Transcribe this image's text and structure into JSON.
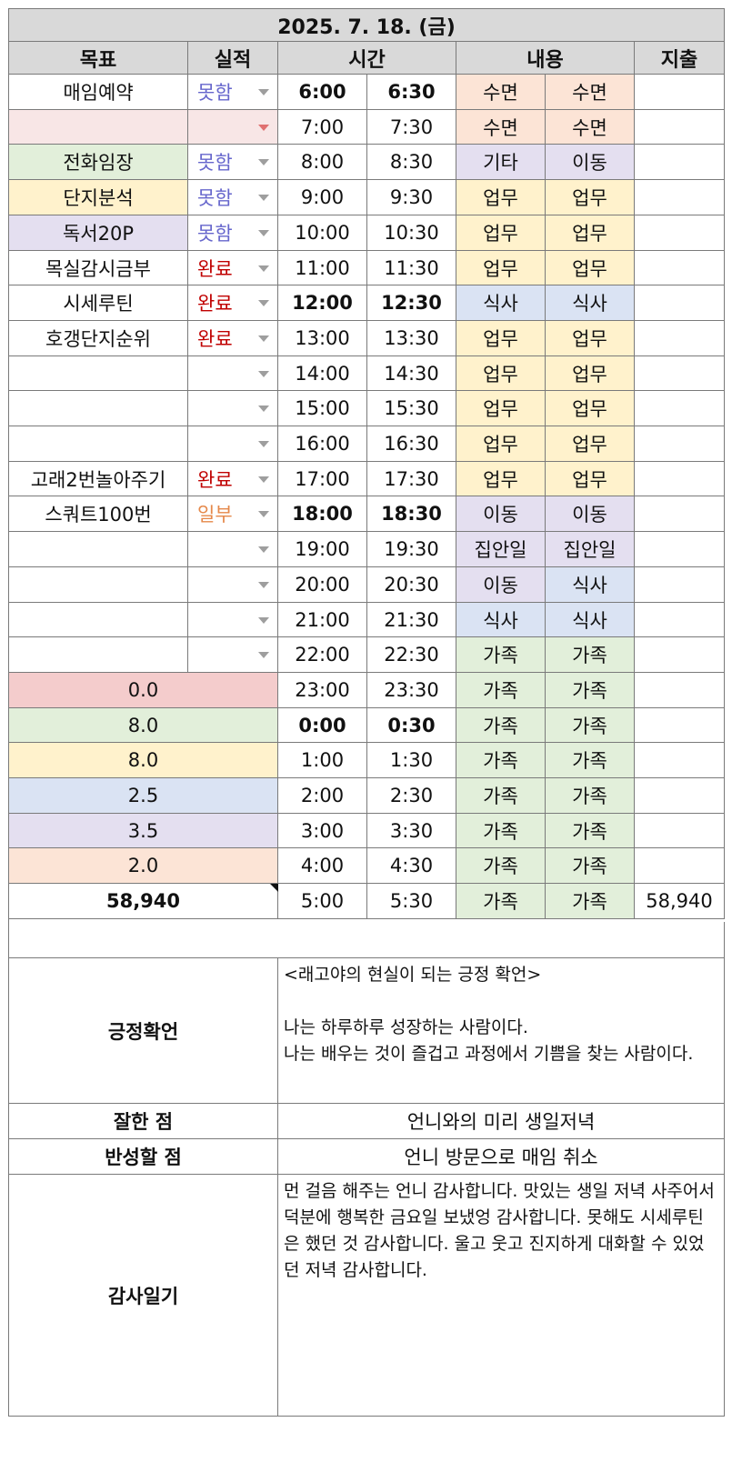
{
  "date_title": "2025. 7. 18. (금)",
  "headers": {
    "goal": "목표",
    "achievement": "실적",
    "time": "시간",
    "content": "내용",
    "expense": "지출"
  },
  "colors": {
    "sleep": "#fce4d6",
    "other": "#e4dff0",
    "work": "#fff2cc",
    "meal": "#dae3f3",
    "family": "#e2efda",
    "pink": "#f8e6e6",
    "status_not_done": "#6666cc",
    "status_done": "#c00000",
    "status_partial": "#e5884a"
  },
  "rows": [
    {
      "goal": "매임예약",
      "status": "못함",
      "time1": "6:00",
      "time2": "6:30",
      "c1": "수면",
      "c2": "수면"
    },
    {
      "goal": "",
      "status": "",
      "time1": "7:00",
      "time2": "7:30",
      "c1": "수면",
      "c2": "수면"
    },
    {
      "goal": "전화임장",
      "status": "못함",
      "time1": "8:00",
      "time2": "8:30",
      "c1": "기타",
      "c2": "이동"
    },
    {
      "goal": "단지분석",
      "status": "못함",
      "time1": "9:00",
      "time2": "9:30",
      "c1": "업무",
      "c2": "업무"
    },
    {
      "goal": "독서20P",
      "status": "못함",
      "time1": "10:00",
      "time2": "10:30",
      "c1": "업무",
      "c2": "업무"
    },
    {
      "goal": "목실감시금부",
      "status": "완료",
      "time1": "11:00",
      "time2": "11:30",
      "c1": "업무",
      "c2": "업무"
    },
    {
      "goal": "시세루틴",
      "status": "완료",
      "time1": "12:00",
      "time2": "12:30",
      "c1": "식사",
      "c2": "식사"
    },
    {
      "goal": "호갱단지순위",
      "status": "완료",
      "time1": "13:00",
      "time2": "13:30",
      "c1": "업무",
      "c2": "업무"
    },
    {
      "goal": "",
      "status": "",
      "time1": "14:00",
      "time2": "14:30",
      "c1": "업무",
      "c2": "업무"
    },
    {
      "goal": "",
      "status": "",
      "time1": "15:00",
      "time2": "15:30",
      "c1": "업무",
      "c2": "업무"
    },
    {
      "goal": "",
      "status": "",
      "time1": "16:00",
      "time2": "16:30",
      "c1": "업무",
      "c2": "업무"
    },
    {
      "goal": "고래2번놀아주기",
      "status": "완료",
      "time1": "17:00",
      "time2": "17:30",
      "c1": "업무",
      "c2": "업무"
    },
    {
      "goal": "스쿼트100번",
      "status": "일부",
      "time1": "18:00",
      "time2": "18:30",
      "c1": "이동",
      "c2": "이동"
    },
    {
      "goal": "",
      "status": "",
      "time1": "19:00",
      "time2": "19:30",
      "c1": "집안일",
      "c2": "집안일"
    },
    {
      "goal": "",
      "status": "",
      "time1": "20:00",
      "time2": "20:30",
      "c1": "이동",
      "c2": "식사"
    },
    {
      "goal": "",
      "status": "",
      "time1": "21:00",
      "time2": "21:30",
      "c1": "식사",
      "c2": "식사"
    },
    {
      "goal": "",
      "status": "",
      "time1": "22:00",
      "time2": "22:30",
      "c1": "가족",
      "c2": "가족"
    }
  ],
  "summary_rows": [
    {
      "value": "0.0",
      "time1": "23:00",
      "time2": "23:30",
      "c1": "가족",
      "c2": "가족"
    },
    {
      "value": "8.0",
      "time1": "0:00",
      "time2": "0:30",
      "c1": "가족",
      "c2": "가족"
    },
    {
      "value": "8.0",
      "time1": "1:00",
      "time2": "1:30",
      "c1": "가족",
      "c2": "가족"
    },
    {
      "value": "2.5",
      "time1": "2:00",
      "time2": "2:30",
      "c1": "가족",
      "c2": "가족"
    },
    {
      "value": "3.5",
      "time1": "3:00",
      "time2": "3:30",
      "c1": "가족",
      "c2": "가족"
    },
    {
      "value": "2.0",
      "time1": "4:00",
      "time2": "4:30",
      "c1": "가족",
      "c2": "가족"
    }
  ],
  "total_row": {
    "amount": "58,940",
    "time1": "5:00",
    "time2": "5:30",
    "c1": "가족",
    "c2": "가족",
    "expense": "58,940"
  },
  "affirmation": {
    "label": "긍정확언",
    "lines": [
      "<래고야의 현실이 되는 긍정 확언>",
      "",
      "나는 하루하루 성장하는 사람이다.",
      "나는 배우는 것이 즐겁고 과정에서 기쁨을 찾는 사람이다."
    ]
  },
  "good_point": {
    "label": "잘한 점",
    "text": "언니와의 미리 생일저녁"
  },
  "reflection": {
    "label": "반성할 점",
    "text": "언니 방문으로 매임 취소"
  },
  "gratitude": {
    "label": "감사일기",
    "text": "먼 걸음 해주는 언니 감사합니다. 맛있는 생일 저녁 사주어서 덕분에 행복한 금요일 보냈엉 감사합니다. 못해도 시세루틴은 했던 것 감사합니다. 울고 웃고 진지하게 대화할 수 있었던 저녁 감사합니다."
  }
}
